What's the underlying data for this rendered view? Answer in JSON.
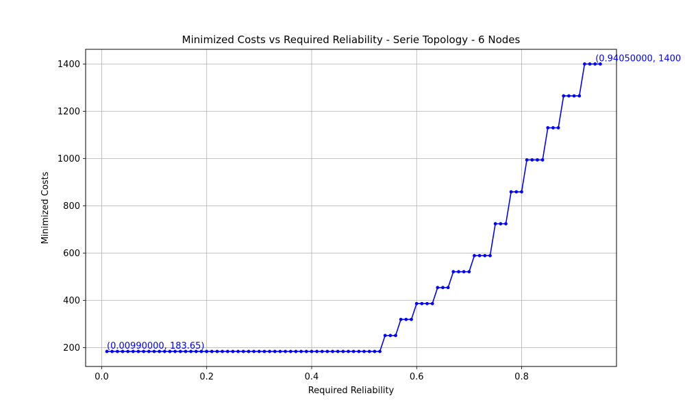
{
  "chart_data": {
    "type": "line",
    "title": "Minimized Costs vs Required Reliability - Serie Topology - 6 Nodes",
    "xlabel": "Required Reliability",
    "ylabel": "Minimized Costs",
    "xlim": [
      -0.0306,
      0.9807
    ],
    "ylim": [
      120,
      1462
    ],
    "xticks": [
      0.0,
      0.2,
      0.4,
      0.6,
      0.8
    ],
    "xtick_labels": [
      "0.0",
      "0.2",
      "0.4",
      "0.6",
      "0.8"
    ],
    "yticks": [
      200,
      400,
      600,
      800,
      1000,
      1200,
      1400
    ],
    "ytick_labels": [
      "200",
      "400",
      "600",
      "800",
      "1000",
      "1200",
      "1400"
    ],
    "grid": true,
    "line_color": "#0000ff",
    "marker": "circle",
    "series": [
      {
        "x_start": 0.0099,
        "x_step": 0.01,
        "count": 94,
        "values": [
          183.65,
          183.65,
          183.65,
          183.65,
          183.65,
          183.65,
          183.65,
          183.65,
          183.65,
          183.65,
          183.65,
          183.65,
          183.65,
          183.65,
          183.65,
          183.65,
          183.65,
          183.65,
          183.65,
          183.65,
          183.65,
          183.65,
          183.65,
          183.65,
          183.65,
          183.65,
          183.65,
          183.65,
          183.65,
          183.65,
          183.65,
          183.65,
          183.65,
          183.65,
          183.65,
          183.65,
          183.65,
          183.65,
          183.65,
          183.65,
          183.65,
          183.65,
          183.65,
          183.65,
          183.65,
          183.65,
          183.65,
          183.65,
          183.65,
          183.65,
          183.65,
          183.65,
          183.65,
          251,
          251,
          251,
          319,
          319,
          319,
          386,
          386,
          386,
          386,
          454,
          454,
          454,
          521,
          521,
          521,
          521,
          589,
          589,
          589,
          589,
          724,
          724,
          724,
          859,
          859,
          859,
          994,
          994,
          994,
          994,
          1130,
          1130,
          1130,
          1265,
          1265,
          1265,
          1265,
          1400,
          1400,
          1400,
          1400
        ]
      }
    ],
    "annotations": [
      {
        "text": "(0.00990000, 183.65)",
        "x": 0.0099,
        "y": 183.65,
        "color": "#0000ff"
      },
      {
        "text": "(0.94050000, 1400",
        "x": 0.9405,
        "y": 1400,
        "color": "#0000ff"
      }
    ]
  }
}
